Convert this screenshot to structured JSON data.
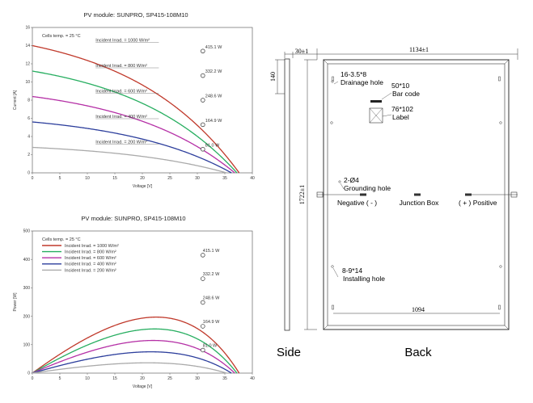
{
  "colors": {
    "1000": "#c0392b",
    "800": "#27ae60",
    "600": "#b530a6",
    "400": "#2c3e9c",
    "200": "#aaaaaa"
  },
  "chart_data": [
    {
      "type": "line",
      "title": "PV module:  SUNPRO,  SP415-108M10",
      "xlabel": "Voltage [V]",
      "ylabel": "Current [A]",
      "xlim": [
        0,
        40
      ],
      "ylim": [
        0,
        16
      ],
      "xticks": [
        0,
        5,
        10,
        15,
        20,
        25,
        30,
        35,
        40
      ],
      "yticks": [
        0,
        2,
        4,
        6,
        8,
        10,
        12,
        14,
        16
      ],
      "grid": false,
      "annotation": "Cells temp. = 25 °C",
      "series": [
        {
          "key": "1000",
          "name": "Incident Irrad. = 1000 W/m²",
          "isc": 14.0,
          "voc": 37.6,
          "mpp": [
            31.0,
            13.4
          ],
          "power_label": "415.1 W"
        },
        {
          "key": "800",
          "name": "Incident Irrad. = 800 W/m²",
          "isc": 11.2,
          "voc": 37.2,
          "mpp": [
            31.0,
            10.7
          ],
          "power_label": "332.2 W"
        },
        {
          "key": "600",
          "name": "Incident Irrad. = 600 W/m²",
          "isc": 8.4,
          "voc": 36.8,
          "mpp": [
            31.0,
            8.0
          ],
          "power_label": "248.6 W"
        },
        {
          "key": "400",
          "name": "Incident Irrad. = 400 W/m²",
          "isc": 5.6,
          "voc": 36.2,
          "mpp": [
            31.0,
            5.3
          ],
          "power_label": "164.9 W"
        },
        {
          "key": "200",
          "name": "Incident Irrad. = 200 W/m²",
          "isc": 2.8,
          "voc": 35.3,
          "mpp": [
            31.0,
            2.6
          ],
          "power_label": "81.0 W"
        }
      ]
    },
    {
      "type": "line",
      "title": "PV module:  SUNPRO,  SP415-108M10",
      "xlabel": "Voltage [V]",
      "ylabel": "Power [W]",
      "xlim": [
        0,
        40
      ],
      "ylim": [
        0,
        500
      ],
      "xticks": [
        0,
        5,
        10,
        15,
        20,
        25,
        30,
        35,
        40
      ],
      "yticks": [
        0,
        100,
        200,
        300,
        400,
        500
      ],
      "grid": false,
      "legend": "top-left",
      "annotation": "Cells temp. = 25 °C",
      "series": [
        {
          "key": "1000",
          "name": "Incident Irrad. = 1000 W/m²",
          "peak": [
            31.0,
            415.1
          ],
          "voc": 37.6,
          "power_label": "415.1 W"
        },
        {
          "key": "800",
          "name": "Incident Irrad. = 800 W/m²",
          "peak": [
            31.0,
            332.2
          ],
          "voc": 37.2,
          "power_label": "332.2 W"
        },
        {
          "key": "600",
          "name": "Incident Irrad. = 600 W/m²",
          "peak": [
            31.0,
            248.6
          ],
          "voc": 36.8,
          "power_label": "248.6 W"
        },
        {
          "key": "400",
          "name": "Incident Irrad. = 400 W/m²",
          "peak": [
            31.0,
            164.9
          ],
          "voc": 36.2,
          "power_label": "164.9 W"
        },
        {
          "key": "200",
          "name": "Incident Irrad. = 200 W/m²",
          "peak": [
            31.0,
            81.0
          ],
          "voc": 35.3,
          "power_label": "81.0 W"
        }
      ]
    }
  ],
  "drawing": {
    "dims": {
      "frame_depth": "30±1",
      "width": "1134±1",
      "bar_height": "140",
      "height": "1722±1",
      "mount_span": "1094"
    },
    "labels": {
      "drain_size": "16-3.5*8",
      "drain": "Drainage hole",
      "barcode_size": "50*10",
      "barcode": "Bar code",
      "label_size": "76*102",
      "label": "Label",
      "ground_size": "2-Ø4",
      "ground": "Grounding hole",
      "negative": "Negative ( - )",
      "junction": "Junction Box",
      "positive": "( + ) Positive",
      "install_size": "8-9*14",
      "install": "Installing hole"
    },
    "views": {
      "side": "Side",
      "back": "Back"
    }
  }
}
